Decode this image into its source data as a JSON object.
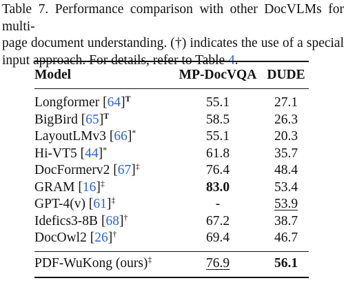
{
  "caption": {
    "line1": "Table 7. Performance comparison with other DocVLMs for multi-",
    "line2_before": "page document understanding.  (",
    "line2_dagger": "†",
    "line2_after": ") indicates the use of a special",
    "line3_before": "input approach. For details, refer to Table ",
    "line3_ref": "4",
    "line3_after": "."
  },
  "table": {
    "headers": {
      "model": "Model",
      "mp_docvqa": "MP-DocVQA",
      "dude": "DUDE"
    },
    "rows": [
      {
        "name": "Longformer",
        "ref": "64",
        "mark": "T",
        "mp": "55.1",
        "dude": "27.1"
      },
      {
        "name": "BigBird",
        "ref": "65",
        "mark": "T",
        "mp": "58.5",
        "dude": "26.3"
      },
      {
        "name": "LayoutLMv3",
        "ref": "66",
        "mark": "*",
        "mp": "55.1",
        "dude": "20.3"
      },
      {
        "name": "Hi-VT5",
        "ref": "44",
        "mark": "*",
        "mp": "61.8",
        "dude": "35.7"
      },
      {
        "name": "DocFormerv2",
        "ref": "67",
        "mark": "‡",
        "mp": "76.4",
        "dude": "48.4"
      },
      {
        "name": "GRAM",
        "ref": "16",
        "mark": "‡",
        "mp": "83.0",
        "dude": "53.4"
      },
      {
        "name": "GPT-4(v)",
        "ref": "61",
        "mark": "‡",
        "mp": "-",
        "dude": "53.9"
      },
      {
        "name": "Idefics3-8B",
        "ref": "68",
        "mark": "†",
        "mp": "67.2",
        "dude": "38.7"
      },
      {
        "name": "DocOwl2",
        "ref": "26",
        "mark": "†",
        "mp": "69.4",
        "dude": "46.7"
      }
    ],
    "ours": {
      "name": "PDF-WuKong (ours)",
      "mark": "‡",
      "mp": "76.9",
      "dude": "56.1"
    }
  }
}
